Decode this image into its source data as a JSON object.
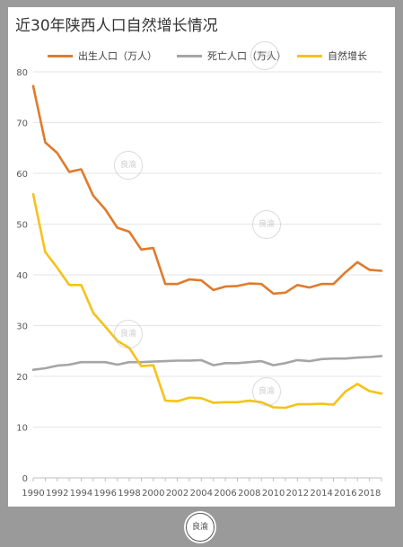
{
  "chart_data": {
    "type": "line",
    "title": "近30年陕西人口自然增长情况",
    "x": [
      1990,
      1991,
      1992,
      1993,
      1994,
      1995,
      1996,
      1997,
      1998,
      1999,
      2000,
      2001,
      2002,
      2003,
      2004,
      2005,
      2006,
      2007,
      2008,
      2009,
      2010,
      2011,
      2012,
      2013,
      2014,
      2015,
      2016,
      2017,
      2018,
      2019
    ],
    "x_tick_labels": [
      "1990",
      "1992",
      "1994",
      "1996",
      "1998",
      "2000",
      "2002",
      "2004",
      "2006",
      "2008",
      "2010",
      "2012",
      "2014",
      "2016",
      "2018"
    ],
    "y_tick_labels": [
      "0",
      "10",
      "20",
      "30",
      "40",
      "50",
      "60",
      "70",
      "80"
    ],
    "ylim": [
      0,
      80
    ],
    "grid": true,
    "legend_position": "top",
    "series": [
      {
        "name": "出生人口（万人）",
        "color": "#E07B2B",
        "values": [
          77.2,
          66.1,
          64.0,
          60.3,
          60.8,
          55.6,
          52.9,
          49.3,
          48.5,
          45.0,
          45.3,
          38.2,
          38.2,
          39.1,
          38.9,
          37.0,
          37.7,
          37.8,
          38.3,
          38.2,
          36.3,
          36.5,
          38.0,
          37.5,
          38.2,
          38.2,
          40.5,
          42.5,
          41.0,
          40.8
        ]
      },
      {
        "name": "死亡人口（万人）",
        "color": "#A5A5A5",
        "values": [
          21.3,
          21.6,
          22.1,
          22.3,
          22.8,
          22.8,
          22.8,
          22.3,
          22.8,
          22.8,
          22.9,
          23.0,
          23.1,
          23.1,
          23.2,
          22.2,
          22.6,
          22.6,
          22.8,
          23.0,
          22.2,
          22.6,
          23.2,
          23.0,
          23.4,
          23.5,
          23.5,
          23.7,
          23.8,
          24.0
        ]
      },
      {
        "name": "自然增长",
        "color": "#F5C318",
        "values": [
          55.9,
          44.5,
          41.4,
          38.0,
          38.0,
          32.5,
          29.8,
          27.0,
          25.6,
          22.0,
          22.2,
          15.2,
          15.1,
          15.8,
          15.7,
          14.8,
          14.9,
          14.9,
          15.2,
          14.9,
          13.9,
          13.8,
          14.5,
          14.5,
          14.6,
          14.4,
          17.0,
          18.5,
          17.1,
          16.6
        ]
      }
    ]
  },
  "watermark_text": "良渝",
  "footer_logo_text": "良渝"
}
